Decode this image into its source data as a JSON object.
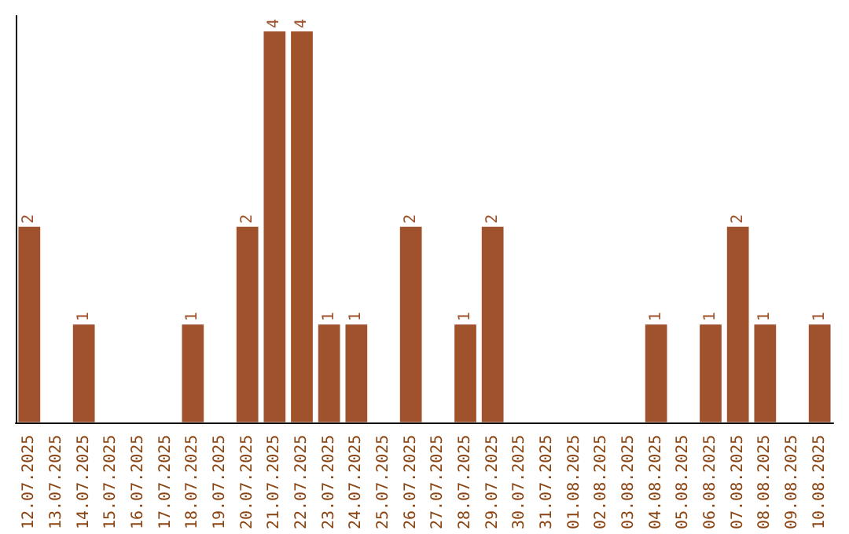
{
  "chart_data": {
    "type": "bar",
    "categories": [
      "12.07.2025",
      "13.07.2025",
      "14.07.2025",
      "15.07.2025",
      "16.07.2025",
      "17.07.2025",
      "18.07.2025",
      "19.07.2025",
      "20.07.2025",
      "21.07.2025",
      "22.07.2025",
      "23.07.2025",
      "24.07.2025",
      "25.07.2025",
      "26.07.2025",
      "27.07.2025",
      "28.07.2025",
      "29.07.2025",
      "30.07.2025",
      "31.07.2025",
      "01.08.2025",
      "02.08.2025",
      "03.08.2025",
      "04.08.2025",
      "05.08.2025",
      "06.08.2025",
      "07.08.2025",
      "08.08.2025",
      "09.08.2025",
      "10.08.2025"
    ],
    "values": [
      2,
      0,
      1,
      0,
      0,
      0,
      1,
      0,
      2,
      4,
      4,
      1,
      1,
      0,
      2,
      0,
      1,
      2,
      0,
      0,
      0,
      0,
      0,
      1,
      0,
      1,
      2,
      1,
      0,
      1
    ],
    "value_labels": [
      "2",
      null,
      "1",
      null,
      null,
      null,
      "1",
      null,
      "2",
      "4",
      "4",
      "1",
      "1",
      null,
      "2",
      null,
      "1",
      "2",
      null,
      null,
      null,
      null,
      null,
      "1",
      null,
      "1",
      "2",
      "1",
      null,
      "1"
    ],
    "color": "#a0522d"
  }
}
